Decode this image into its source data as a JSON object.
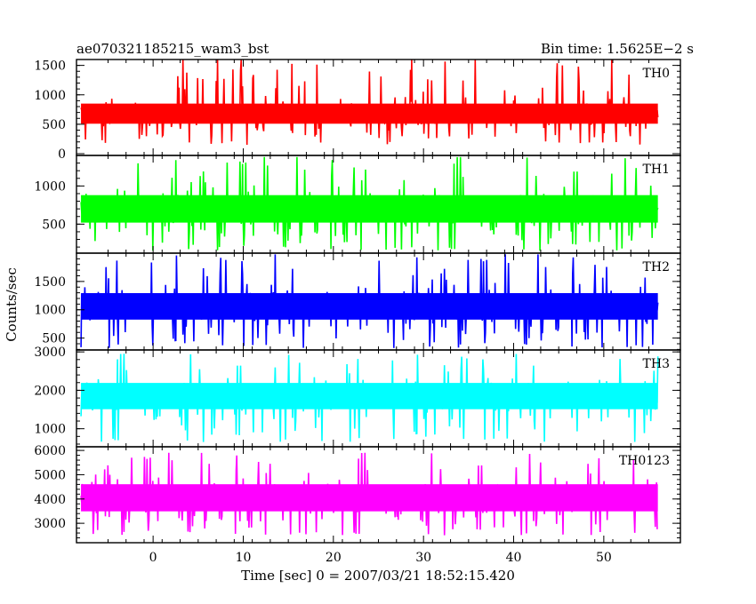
{
  "header": {
    "title": "ae070321185215_wam3_bst",
    "bin_time": "Bin time: 1.5625E−2 s"
  },
  "chart_data": {
    "type": "line",
    "xlabel": "Time [sec] 0 = 2007/03/21 18:52:15.420",
    "ylabel": "Counts/sec",
    "xlim": [
      -8.5,
      58.5
    ],
    "x_ticks": [
      0,
      10,
      20,
      30,
      40,
      50
    ],
    "x_range_data": [
      -8,
      56
    ],
    "bin_time_s": 0.015625,
    "panels": [
      {
        "name": "TH0",
        "color": "#ff0000",
        "ylim": [
          -30,
          1600
        ],
        "ticks": [
          0,
          500,
          1000,
          1500
        ],
        "mean": 680,
        "spread": 190,
        "low": 150,
        "high": 1600
      },
      {
        "name": "TH1",
        "color": "#00ff00",
        "ylim": [
          120,
          1400
        ],
        "ticks": [
          500,
          1000
        ],
        "mean": 700,
        "spread": 200,
        "low": 150,
        "high": 1380
      },
      {
        "name": "TH2",
        "color": "#0000ff",
        "ylim": [
          290,
          2000
        ],
        "ticks": [
          500,
          1000,
          1500
        ],
        "mean": 1060,
        "spread": 260,
        "low": 320,
        "high": 1980
      },
      {
        "name": "TH3",
        "color": "#00ffff",
        "ylim": [
          530,
          3050
        ],
        "ticks": [
          1000,
          2000,
          3000
        ],
        "mean": 1850,
        "spread": 380,
        "low": 650,
        "high": 2950
      },
      {
        "name": "TH0123",
        "color": "#ff00ff",
        "ylim": [
          2200,
          6150
        ],
        "ticks": [
          3000,
          4000,
          5000,
          6000
        ],
        "mean": 4050,
        "spread": 620,
        "low": 2500,
        "high": 5900
      }
    ]
  }
}
